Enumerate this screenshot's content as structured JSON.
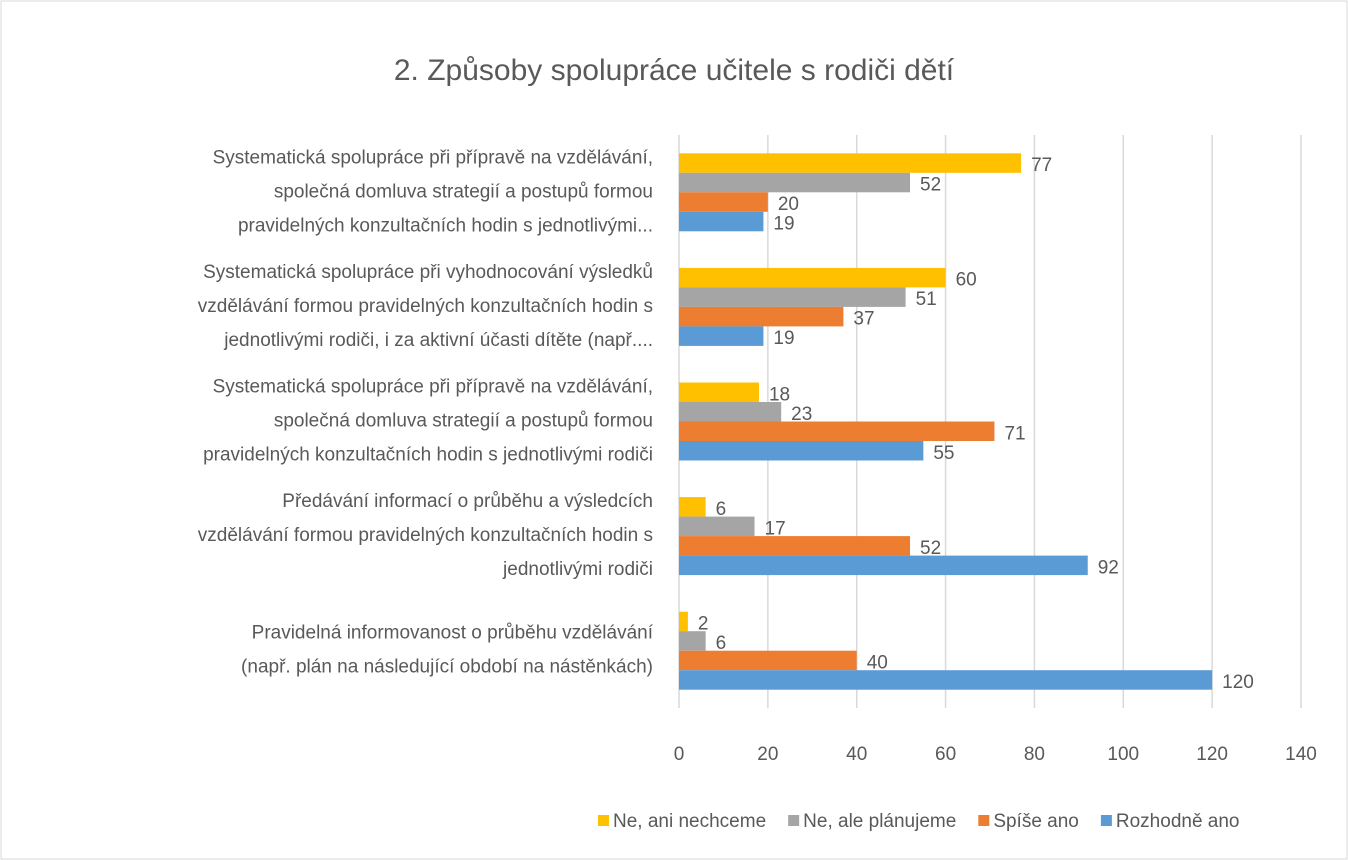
{
  "chart_data": {
    "type": "bar",
    "orientation": "horizontal",
    "title": "2. Způsoby spolupráce učitele s rodiči dětí",
    "categories": [
      [
        "Systematická spolupráce při přípravě na vzdělávání,",
        "společná domluva  strategií a postupů formou",
        "pravidelných konzultačních hodin s jednotlivými..."
      ],
      [
        "Systematická spolupráce při vyhodnocování výsledků",
        "vzdělávání formou pravidelných konzultačních hodin s",
        "jednotlivými rodiči, i za aktivní účasti dítěte (např...."
      ],
      [
        "Systematická spolupráce při přípravě na vzdělávání,",
        "společná domluva  strategií a postupů formou",
        "pravidelných konzultačních hodin s jednotlivými rodiči"
      ],
      [
        "Předávání informací o průběhu a výsledcích",
        "vzdělávání formou pravidelných konzultačních hodin s",
        "jednotlivými rodiči"
      ],
      [
        "Pravidelná informovanost o  průběhu vzdělávání",
        "(např.  plán na následující období na nástěnkách)"
      ]
    ],
    "series": [
      {
        "name": "Ne, ani nechceme",
        "color": "#ffc000",
        "values": [
          77,
          60,
          18,
          6,
          2
        ]
      },
      {
        "name": "Ne, ale plánujeme",
        "color": "#a5a5a5",
        "values": [
          52,
          51,
          23,
          17,
          6
        ]
      },
      {
        "name": "Spíše ano",
        "color": "#ed7d31",
        "values": [
          20,
          37,
          71,
          52,
          40
        ]
      },
      {
        "name": "Rozhodně ano",
        "color": "#5b9bd5",
        "values": [
          19,
          19,
          55,
          92,
          120
        ]
      }
    ],
    "xlim": [
      0,
      140
    ],
    "xticks": [
      0,
      20,
      40,
      60,
      80,
      100,
      120,
      140
    ],
    "grid": true,
    "legend": "bottom"
  }
}
